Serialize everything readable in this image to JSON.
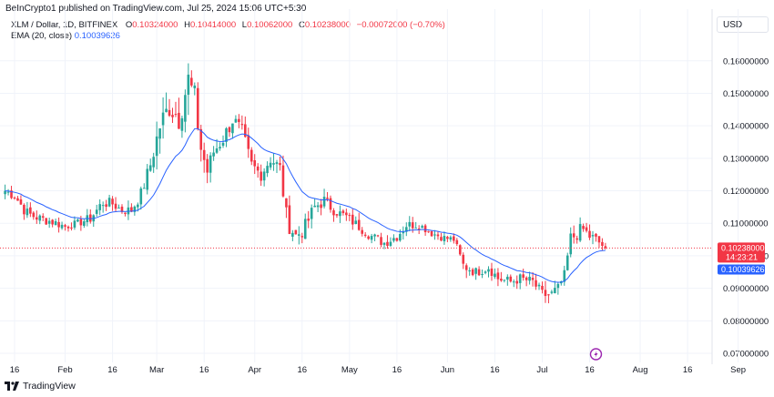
{
  "header": {
    "published": "BeInCrypto1 published on TradingView.com, Jul 25, 2024 15:06 UTC+5:30",
    "symbol": "XLM / Dollar, 1D, BITFINEX",
    "o_label": "O",
    "o_value": "0.10324000",
    "h_label": "H",
    "h_value": "0.10414000",
    "l_label": "L",
    "l_value": "0.10062000",
    "c_label": "C",
    "c_value": "0.10238000",
    "change": "−0.00072000 (−0.70%)",
    "ema_label": "EMA (20, close)",
    "ema_value": "0.10039626"
  },
  "currency": "USD",
  "footer": {
    "brand": "TradingView"
  },
  "colors": {
    "up": "#26a69a",
    "down": "#f23645",
    "ema": "#2962ff",
    "grid": "#f0f3fa",
    "axis_text": "#131722"
  },
  "price_tag": {
    "value": "0.10238000",
    "countdown": "14:23:21"
  },
  "ema_tag": {
    "value": "0.10039626"
  },
  "chart_data": {
    "type": "candlestick",
    "title": "XLM / Dollar, 1D, BITFINEX",
    "y_ticks": [
      "0.16000000",
      "0.15000000",
      "0.14000000",
      "0.13000000",
      "0.12000000",
      "0.11000000",
      "0.10000000",
      "0.09000000",
      "0.08000000",
      "0.07000000"
    ],
    "y_tick_values": [
      0.16,
      0.15,
      0.14,
      0.13,
      0.12,
      0.11,
      0.1,
      0.09,
      0.08,
      0.07
    ],
    "ylim": [
      0.0672,
      0.1675
    ],
    "x_ticks": [
      "16",
      "Feb",
      "16",
      "Mar",
      "16",
      "Apr",
      "16",
      "May",
      "16",
      "Jun",
      "16",
      "Jul",
      "16",
      "Aug",
      "16",
      "Sep"
    ],
    "x_tick_days": [
      0,
      16,
      31,
      45,
      60,
      76,
      91,
      106,
      121,
      137,
      152,
      167,
      182,
      198,
      213,
      229
    ],
    "last_close": 0.10238,
    "last_ema": 0.10039626,
    "anchors": [
      {
        "day": -3,
        "close": 0.12,
        "range": 0.004
      },
      {
        "day": 0,
        "close": 0.1185,
        "range": 0.004
      },
      {
        "day": 4,
        "close": 0.113,
        "range": 0.005
      },
      {
        "day": 8,
        "close": 0.1115,
        "range": 0.004
      },
      {
        "day": 12,
        "close": 0.1105,
        "range": 0.004
      },
      {
        "day": 16,
        "close": 0.109,
        "range": 0.003
      },
      {
        "day": 20,
        "close": 0.11,
        "range": 0.003
      },
      {
        "day": 24,
        "close": 0.1115,
        "range": 0.004
      },
      {
        "day": 28,
        "close": 0.1165,
        "range": 0.005
      },
      {
        "day": 31,
        "close": 0.116,
        "range": 0.004
      },
      {
        "day": 34,
        "close": 0.114,
        "range": 0.004
      },
      {
        "day": 37,
        "close": 0.114,
        "range": 0.004
      },
      {
        "day": 40,
        "close": 0.119,
        "range": 0.005
      },
      {
        "day": 43,
        "close": 0.128,
        "range": 0.006
      },
      {
        "day": 46,
        "close": 0.14,
        "range": 0.01
      },
      {
        "day": 49,
        "close": 0.146,
        "range": 0.01
      },
      {
        "day": 52,
        "close": 0.143,
        "range": 0.012
      },
      {
        "day": 55,
        "close": 0.154,
        "range": 0.012
      },
      {
        "day": 57,
        "close": 0.148,
        "range": 0.012
      },
      {
        "day": 59,
        "close": 0.133,
        "range": 0.008
      },
      {
        "day": 61,
        "close": 0.126,
        "range": 0.008
      },
      {
        "day": 63,
        "close": 0.132,
        "range": 0.006
      },
      {
        "day": 66,
        "close": 0.136,
        "range": 0.006
      },
      {
        "day": 69,
        "close": 0.142,
        "range": 0.007
      },
      {
        "day": 72,
        "close": 0.138,
        "range": 0.006
      },
      {
        "day": 75,
        "close": 0.128,
        "range": 0.005
      },
      {
        "day": 78,
        "close": 0.125,
        "range": 0.005
      },
      {
        "day": 81,
        "close": 0.13,
        "range": 0.006
      },
      {
        "day": 84,
        "close": 0.127,
        "range": 0.005
      },
      {
        "day": 86,
        "close": 0.112,
        "range": 0.008
      },
      {
        "day": 89,
        "close": 0.106,
        "range": 0.009
      },
      {
        "day": 92,
        "close": 0.109,
        "range": 0.006
      },
      {
        "day": 95,
        "close": 0.115,
        "range": 0.006
      },
      {
        "day": 98,
        "close": 0.117,
        "range": 0.005
      },
      {
        "day": 101,
        "close": 0.114,
        "range": 0.004
      },
      {
        "day": 105,
        "close": 0.112,
        "range": 0.004
      },
      {
        "day": 109,
        "close": 0.109,
        "range": 0.004
      },
      {
        "day": 113,
        "close": 0.106,
        "range": 0.004
      },
      {
        "day": 117,
        "close": 0.104,
        "range": 0.004
      },
      {
        "day": 121,
        "close": 0.106,
        "range": 0.004
      },
      {
        "day": 124,
        "close": 0.1095,
        "range": 0.004
      },
      {
        "day": 128,
        "close": 0.1095,
        "range": 0.003
      },
      {
        "day": 132,
        "close": 0.107,
        "range": 0.003
      },
      {
        "day": 136,
        "close": 0.1055,
        "range": 0.003
      },
      {
        "day": 139,
        "close": 0.105,
        "range": 0.003
      },
      {
        "day": 142,
        "close": 0.097,
        "range": 0.005
      },
      {
        "day": 146,
        "close": 0.095,
        "range": 0.004
      },
      {
        "day": 150,
        "close": 0.0965,
        "range": 0.004
      },
      {
        "day": 153,
        "close": 0.093,
        "range": 0.004
      },
      {
        "day": 157,
        "close": 0.092,
        "range": 0.004
      },
      {
        "day": 160,
        "close": 0.093,
        "range": 0.004
      },
      {
        "day": 164,
        "close": 0.092,
        "range": 0.004
      },
      {
        "day": 167,
        "close": 0.088,
        "range": 0.005
      },
      {
        "day": 170,
        "close": 0.088,
        "range": 0.006
      },
      {
        "day": 172,
        "close": 0.09,
        "range": 0.004
      },
      {
        "day": 174,
        "close": 0.094,
        "range": 0.004
      },
      {
        "day": 176,
        "close": 0.105,
        "range": 0.007
      },
      {
        "day": 178,
        "close": 0.107,
        "range": 0.006
      },
      {
        "day": 180,
        "close": 0.108,
        "range": 0.006
      },
      {
        "day": 182,
        "close": 0.106,
        "range": 0.005
      },
      {
        "day": 184,
        "close": 0.105,
        "range": 0.004
      },
      {
        "day": 186,
        "close": 0.1032,
        "range": 0.003
      },
      {
        "day": 187,
        "close": 0.10238,
        "range": 0.0035
      }
    ]
  }
}
